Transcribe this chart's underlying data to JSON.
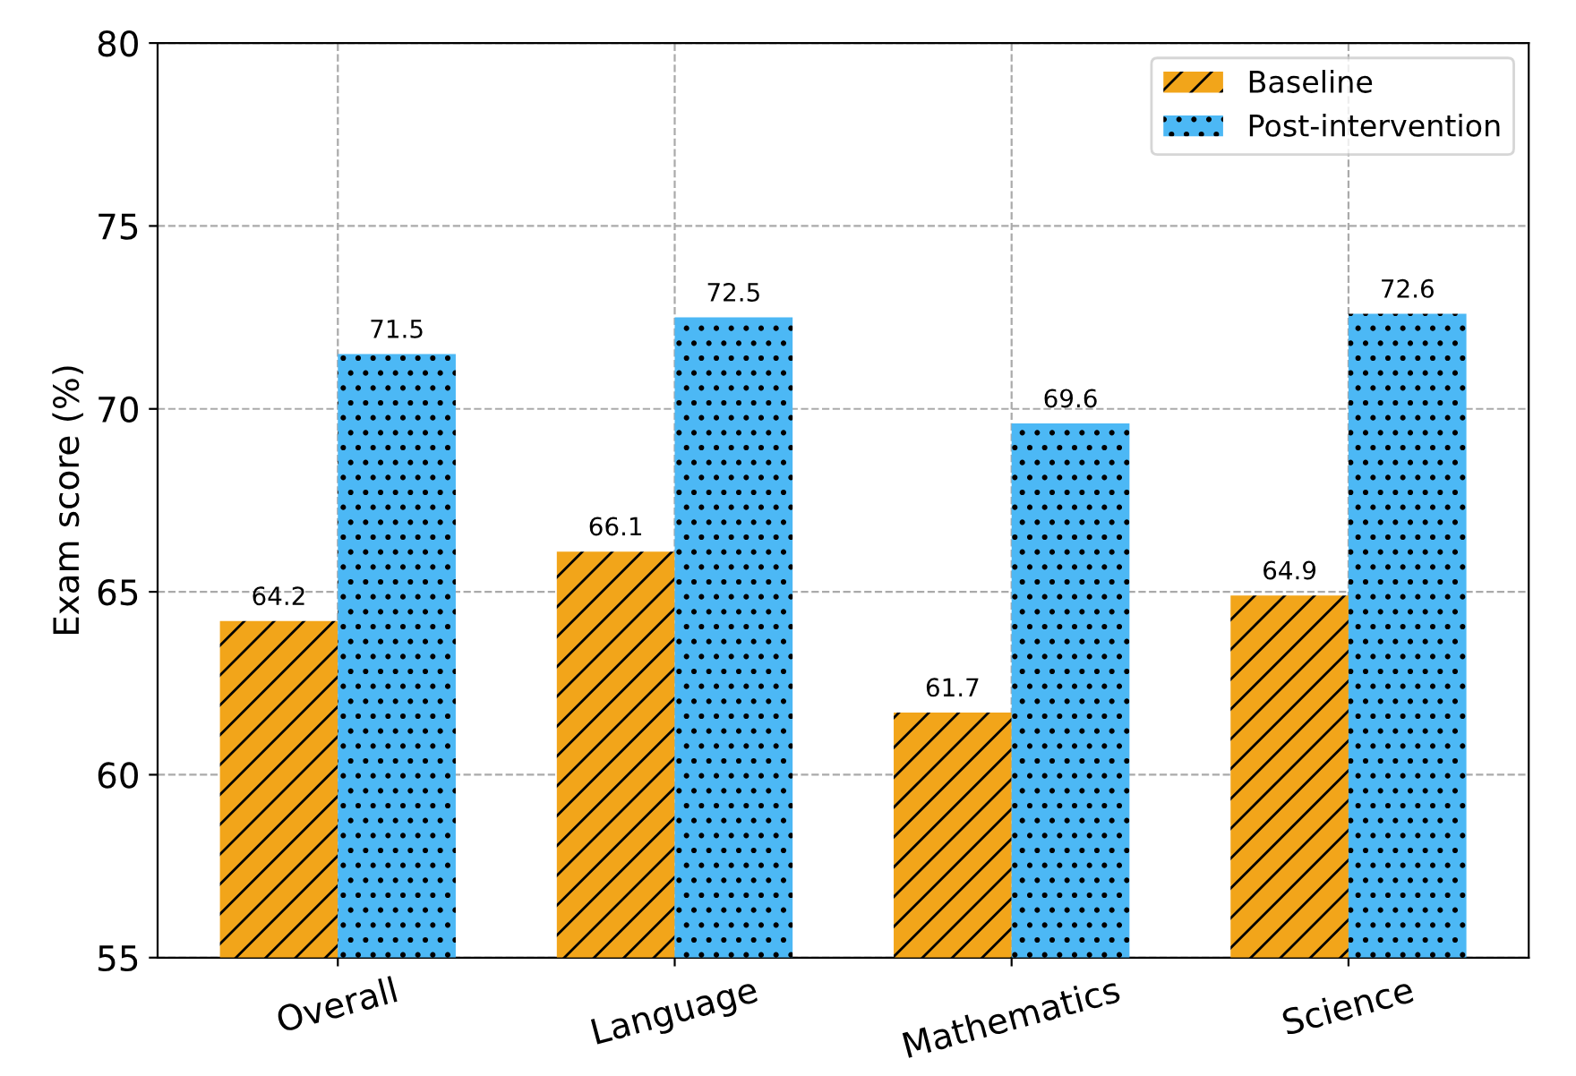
{
  "chart_data": {
    "type": "bar",
    "ylabel": "Exam score (%)",
    "categories": [
      "Overall",
      "Language",
      "Mathematics",
      "Science"
    ],
    "series": [
      {
        "name": "Baseline",
        "color": "#f2a51a",
        "values": [
          64.2,
          66.1,
          61.7,
          64.9
        ]
      },
      {
        "name": "Post-intervention",
        "color": "#4cb8f5",
        "values": [
          71.5,
          72.5,
          69.6,
          72.6
        ]
      }
    ],
    "ylim": [
      55,
      80
    ],
    "yticks": [
      55,
      60,
      65,
      70,
      75,
      80
    ],
    "grid": true,
    "legend": "top right",
    "data_labels": true
  }
}
